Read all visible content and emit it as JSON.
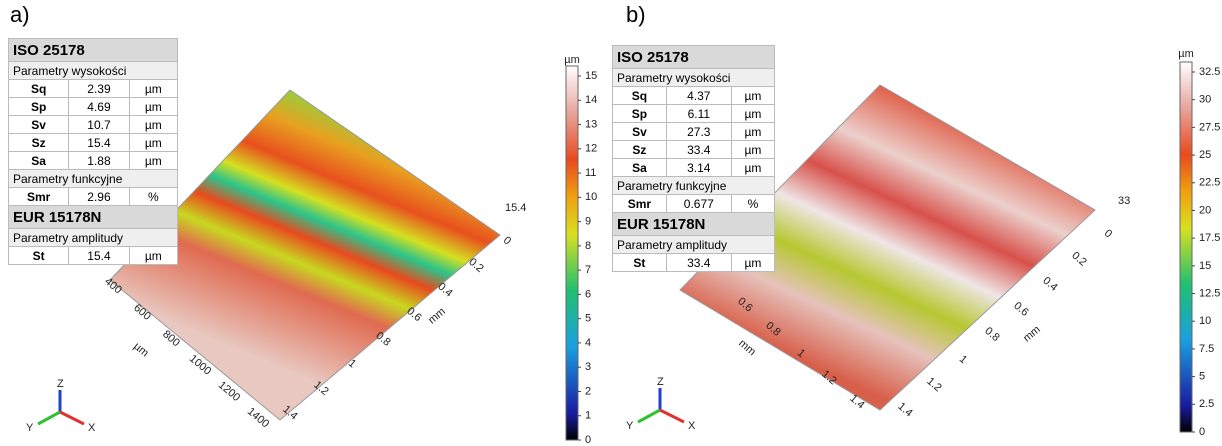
{
  "panels": [
    {
      "label": "a)",
      "table": {
        "title1": "ISO 25178",
        "group1": "Parametry wysokości",
        "rows1": [
          [
            "Sq",
            2.39,
            "µm"
          ],
          [
            "Sp",
            4.69,
            "µm"
          ],
          [
            "Sv",
            10.7,
            "µm"
          ],
          [
            "Sz",
            15.4,
            "µm"
          ],
          [
            "Sa",
            1.88,
            "µm"
          ]
        ],
        "group2": "Parametry funkcyjne",
        "rows2": [
          [
            "Smr",
            2.96,
            "%"
          ]
        ],
        "title2": "EUR 15178N",
        "group3": "Parametry amplitudy",
        "rows3": [
          [
            "St",
            15.4,
            "µm"
          ]
        ]
      },
      "surface": {
        "max_label": 15.4,
        "right_unit": "mm",
        "right_ticks": [
          0,
          0.2,
          0.4,
          0.6,
          0.8,
          1,
          1.2,
          1.4
        ],
        "left_unit": "µm",
        "left_ticks": [
          400,
          600,
          800,
          1000,
          1200,
          1400
        ]
      },
      "colorbar": {
        "unit": "µm",
        "ticks": [
          0,
          1,
          2,
          3,
          4,
          5,
          6,
          7,
          8,
          9,
          10,
          11,
          12,
          13,
          14,
          15
        ]
      },
      "axes": [
        "Z",
        "Y",
        "X"
      ]
    },
    {
      "label": "b)",
      "table": {
        "title1": "ISO 25178",
        "group1": "Parametry wysokości",
        "rows1": [
          [
            "Sq",
            4.37,
            "µm"
          ],
          [
            "Sp",
            6.11,
            "µm"
          ],
          [
            "Sv",
            27.3,
            "µm"
          ],
          [
            "Sz",
            33.4,
            "µm"
          ],
          [
            "Sa",
            3.14,
            "µm"
          ]
        ],
        "group2": "Parametry funkcyjne",
        "rows2": [
          [
            "Smr",
            0.677,
            "%"
          ]
        ],
        "title2": "EUR 15178N",
        "group3": "Parametry amplitudy",
        "rows3": [
          [
            "St",
            33.4,
            "µm"
          ]
        ]
      },
      "surface": {
        "max_label": 33,
        "right_unit": "mm",
        "right_ticks": [
          0,
          0.2,
          0.4,
          0.6,
          0.8,
          1,
          1.2,
          1.4
        ],
        "left_unit": "mm",
        "left_ticks": [
          0.6,
          0.8,
          1,
          1.2,
          1.4
        ]
      },
      "colorbar": {
        "unit": "µm",
        "ticks": [
          0,
          2.5,
          5,
          7.5,
          10,
          12.5,
          15,
          17.5,
          20,
          22.5,
          25,
          27.5,
          30,
          32.5
        ]
      },
      "axes": [
        "Z",
        "Y",
        "X"
      ]
    }
  ]
}
